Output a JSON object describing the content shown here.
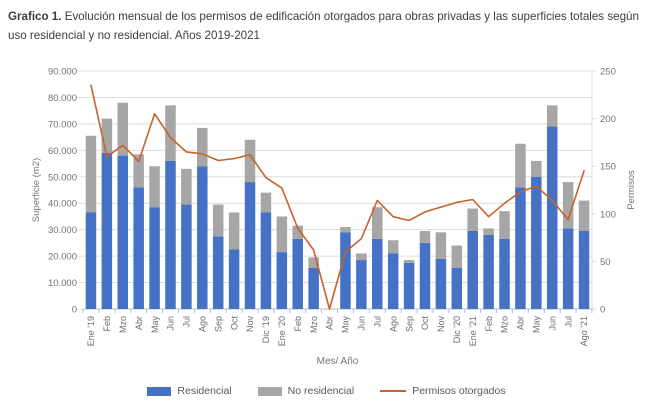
{
  "title": {
    "prefix": "Grafico 1.",
    "text": " Evolución mensual de los permisos de edificación otorgados para obras privadas y las superficies totales según uso residencial y no residencial. Años 2019-2021"
  },
  "colors": {
    "residencial": "#4472c4",
    "no_residencial": "#a6a6a6",
    "permisos_line": "#c8622b",
    "grid": "#dcdcdc",
    "axis": "#bfbfbf",
    "tick_text": "#737373",
    "x_label_text": "#6e6e6e"
  },
  "chart_data": {
    "type": "bar",
    "subtype": "stacked-bar-with-line",
    "categories": [
      "Ene '19",
      "Feb",
      "Mzo",
      "Abr",
      "May",
      "Jun",
      "Jul",
      "Ago",
      "Sep",
      "Oct",
      "Nov",
      "Dic '19",
      "Ene '20",
      "Feb",
      "Mzo",
      "Abr",
      "May",
      "Jun",
      "Jul",
      "Ago",
      "Sep",
      "Oct",
      "Nov",
      "Dic '20",
      "Ene '21",
      "Feb",
      "Mzo",
      "Abr",
      "May",
      "Jun",
      "Jul",
      "Ago '21"
    ],
    "series": [
      {
        "name": "Residencial",
        "type": "bar",
        "stack": "superficie",
        "axis": "left",
        "color": "#4472c4",
        "values": [
          36500,
          59000,
          58000,
          46000,
          38500,
          56000,
          39500,
          54000,
          27500,
          22500,
          48000,
          36500,
          21500,
          26500,
          15500,
          0,
          29000,
          18500,
          26500,
          21000,
          17500,
          25000,
          19000,
          15500,
          29500,
          28000,
          26500,
          46000,
          50000,
          69000,
          30500,
          29500
        ]
      },
      {
        "name": "No residencial",
        "type": "bar",
        "stack": "superficie",
        "axis": "left",
        "color": "#a6a6a6",
        "values": [
          29000,
          13000,
          20000,
          12500,
          15500,
          21000,
          13500,
          14500,
          12000,
          14000,
          16000,
          7500,
          13500,
          5000,
          4000,
          0,
          2000,
          2500,
          12000,
          5000,
          1000,
          4500,
          10000,
          8500,
          8500,
          2500,
          10500,
          16500,
          6000,
          8000,
          17500,
          11500
        ]
      },
      {
        "name": "Permisos otorgados",
        "type": "line",
        "axis": "right",
        "color": "#c8622b",
        "values": [
          235,
          160,
          172,
          155,
          205,
          180,
          165,
          163,
          156,
          158,
          162,
          138,
          127,
          85,
          62,
          0,
          60,
          74,
          114,
          97,
          93,
          102,
          107,
          112,
          115,
          97,
          111,
          123,
          129,
          114,
          94,
          145
        ]
      }
    ],
    "left_axis": {
      "title": "Superficie (m2)",
      "min": 0,
      "max": 90000,
      "step": 10000,
      "tick_labels": [
        "0",
        "10.000",
        "20.000",
        "30.000",
        "40.000",
        "50.000",
        "60.000",
        "70.000",
        "80.000",
        "90.000"
      ]
    },
    "right_axis": {
      "title": "Permisos",
      "min": 0,
      "max": 250,
      "step": 50,
      "tick_labels": [
        "0",
        "50",
        "100",
        "150",
        "200",
        "250"
      ]
    },
    "x_axis": {
      "title": "Mes/ Año"
    },
    "grid": "horizontal",
    "legend_position": "bottom"
  }
}
